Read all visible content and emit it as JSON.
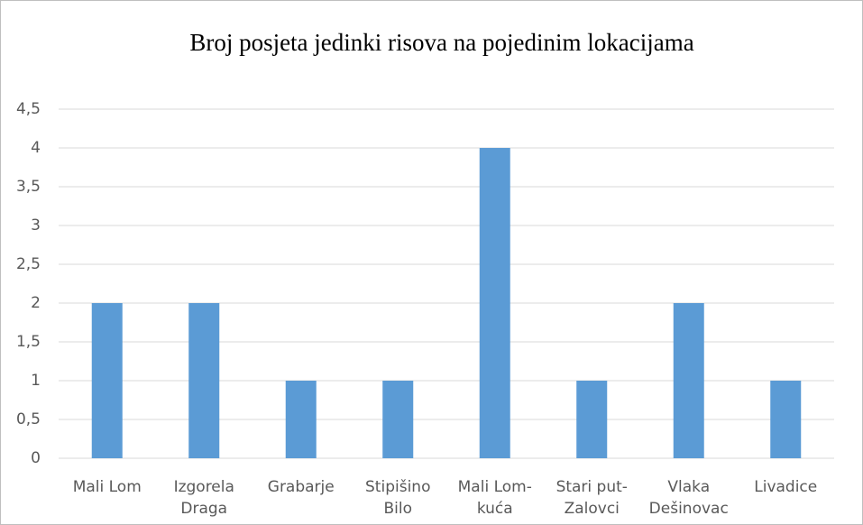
{
  "chart_data": {
    "type": "bar",
    "title": "Broj posjeta jedinki risova na pojedinim lokacijama",
    "categories": [
      "Mali Lom",
      "Izgorela Draga",
      "Grabarje",
      "Stipišino Bilo",
      "Mali Lom-kuća",
      "Stari put-Zalovci",
      "Vlaka Dešinovac",
      "Livadice"
    ],
    "values": [
      2,
      2,
      1,
      1,
      4,
      1,
      2,
      1
    ],
    "color": "#5b9bd5",
    "ylim": [
      0,
      4.5
    ],
    "yticks": [
      0,
      {
        "value": 0.5,
        "label": "0,5"
      },
      1,
      {
        "value": 1.5,
        "label": "1,5"
      },
      2,
      {
        "value": 2.5,
        "label": "2,5"
      },
      3,
      {
        "value": 3.5,
        "label": "3,5"
      },
      4,
      {
        "value": 4.5,
        "label": "4,5"
      }
    ],
    "grid": true
  }
}
